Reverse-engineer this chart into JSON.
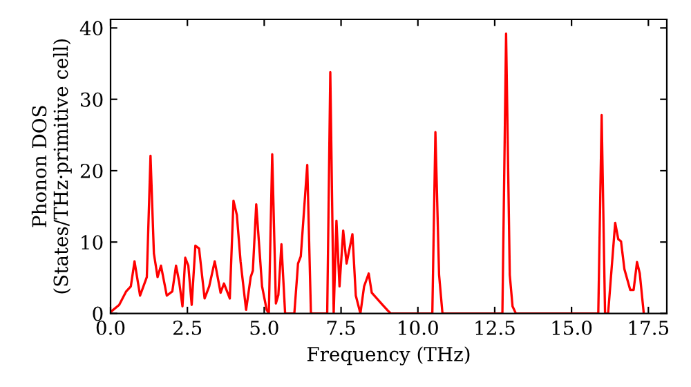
{
  "chart_data": {
    "type": "line",
    "xlabel": "Frequency (THz)",
    "ylabel": "Phonon DOS\n(States/THz·primitive cell)",
    "xlim": [
      0,
      18.1
    ],
    "ylim": [
      0,
      41.2
    ],
    "xticks": [
      {
        "value": 0,
        "label": "0.0"
      },
      {
        "value": 2.5,
        "label": "2.5"
      },
      {
        "value": 5,
        "label": "5.0"
      },
      {
        "value": 7.5,
        "label": "7.5"
      },
      {
        "value": 10,
        "label": "10.0"
      },
      {
        "value": 12.5,
        "label": "12.5"
      },
      {
        "value": 15,
        "label": "15.0"
      },
      {
        "value": 17.5,
        "label": "17.5"
      }
    ],
    "yticks": [
      0,
      10,
      20,
      30,
      40
    ],
    "grid": false,
    "legend": false,
    "marker": "none",
    "line_style": "solid",
    "series": [
      {
        "color": "#ff0000",
        "x": [
          0,
          0.28,
          0.51,
          0.66,
          0.78,
          0.96,
          1.18,
          1.3,
          1.41,
          1.53,
          1.64,
          1.83,
          2.01,
          2.13,
          2.23,
          2.34,
          2.43,
          2.53,
          2.64,
          2.76,
          2.88,
          3.06,
          3.21,
          3.39,
          3.58,
          3.69,
          3.88,
          4.0,
          4.11,
          4.23,
          4.41,
          4.56,
          4.63,
          4.74,
          4.93,
          5.08,
          5.15,
          5.26,
          5.38,
          5.46,
          5.56,
          5.68,
          5.98,
          6.1,
          6.19,
          6.4,
          6.52,
          7.05,
          7.15,
          7.26,
          7.35,
          7.45,
          7.57,
          7.68,
          7.87,
          7.98,
          8.13,
          8.25,
          8.4,
          8.5,
          8.85,
          9.0,
          9.12,
          10.47,
          10.57,
          10.69,
          10.8,
          12.75,
          12.87,
          12.99,
          13.08,
          13.19,
          15.87,
          15.98,
          16.09,
          16.19,
          16.42,
          16.52,
          16.61,
          16.72,
          16.91,
          17.02,
          17.13,
          17.22,
          17.35
        ],
        "values": [
          0.2,
          1.2,
          3.1,
          3.8,
          7.3,
          2.5,
          5.1,
          22.1,
          8.4,
          5.1,
          6.7,
          2.5,
          3.1,
          6.7,
          4.5,
          1.0,
          7.8,
          6.7,
          1.2,
          9.5,
          9.1,
          2.1,
          3.8,
          7.3,
          2.9,
          4.2,
          2.1,
          15.8,
          13.8,
          7.3,
          0.5,
          5.1,
          6.0,
          15.3,
          3.8,
          0.5,
          0,
          22.3,
          1.4,
          2.6,
          9.7,
          0,
          0,
          7.0,
          8.0,
          20.8,
          0,
          0,
          33.8,
          0,
          13.0,
          3.8,
          11.6,
          7.0,
          11.1,
          2.5,
          0,
          3.8,
          5.6,
          2.9,
          1.2,
          0.5,
          0,
          0,
          25.4,
          5.4,
          0,
          0,
          39.2,
          5.4,
          1.0,
          0,
          0,
          27.8,
          0,
          0,
          12.7,
          10.4,
          10.1,
          6.2,
          3.3,
          3.3,
          7.2,
          5.6,
          0
        ]
      }
    ]
  }
}
